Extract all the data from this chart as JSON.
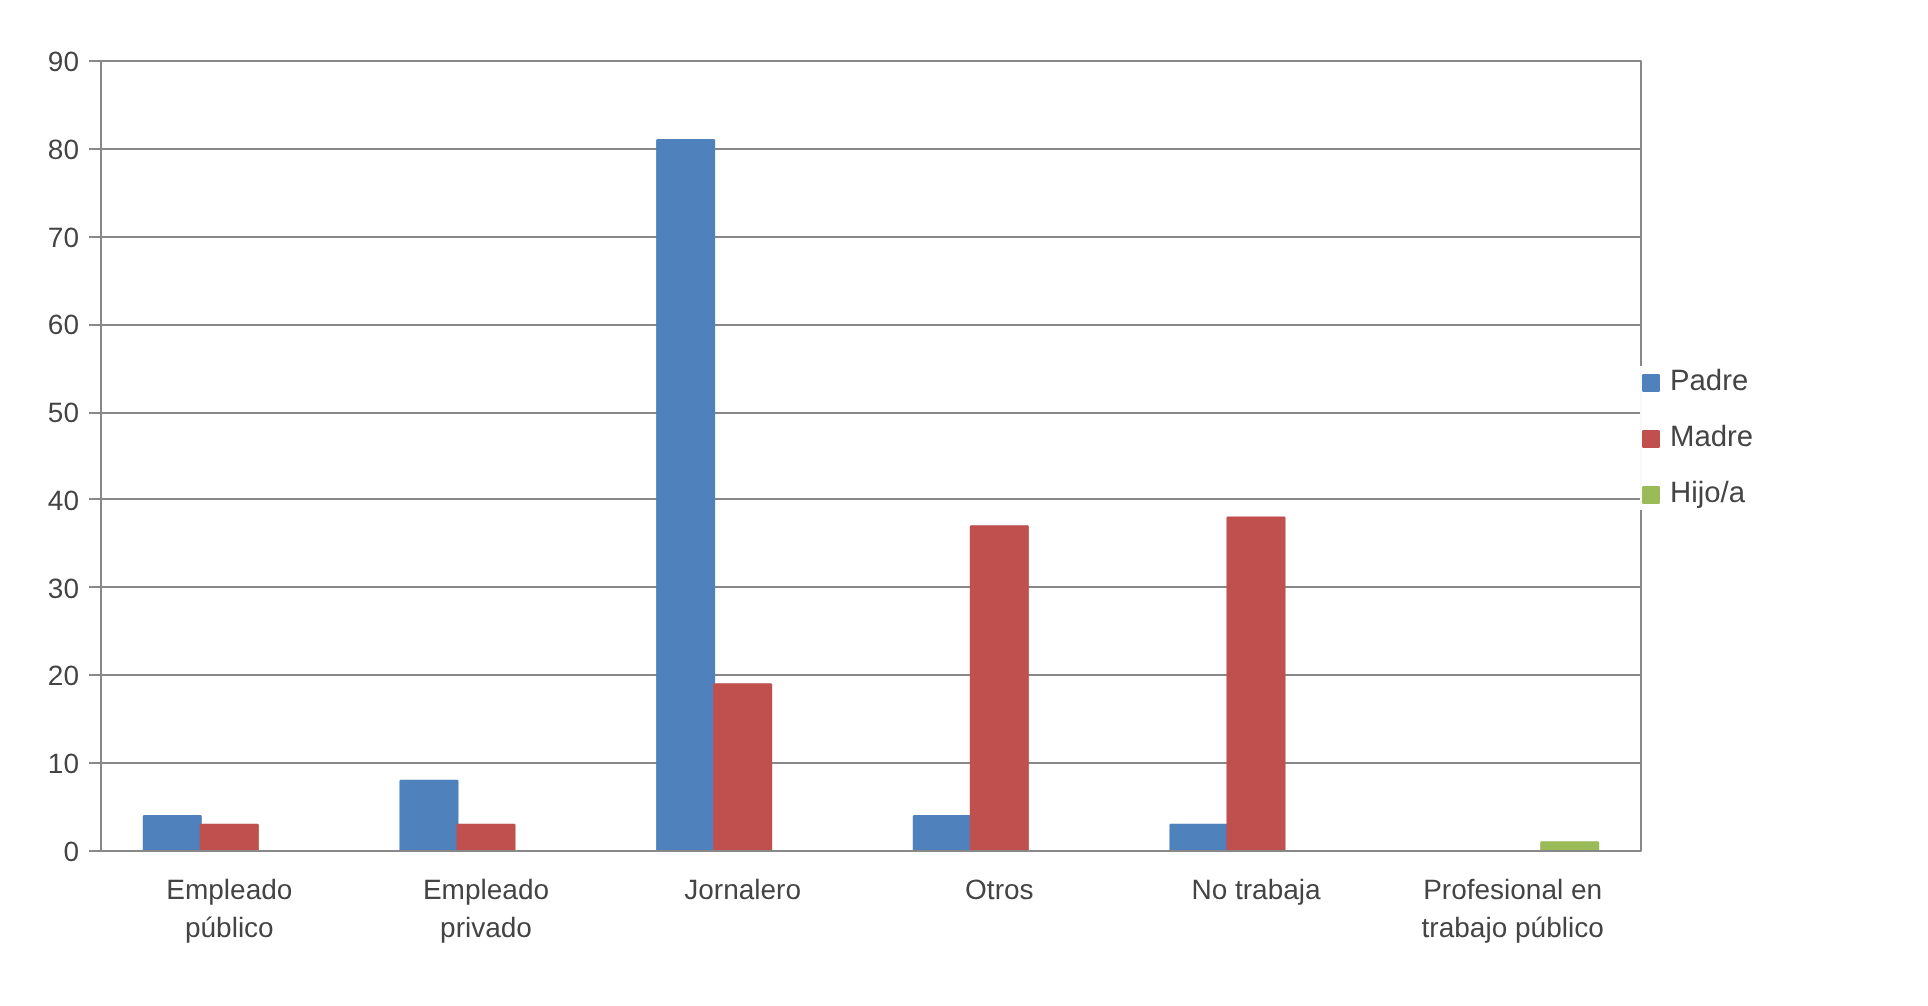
{
  "chart_data": {
    "type": "bar",
    "categories": [
      "Empleado público",
      "Empleado privado",
      "Jornalero",
      "Otros",
      "No trabaja",
      "Profesional en trabajo público"
    ],
    "series": [
      {
        "name": "Padre",
        "color": "#4f81bd",
        "values": [
          4,
          8,
          81,
          4,
          3,
          null
        ]
      },
      {
        "name": "Madre",
        "color": "#c0504d",
        "values": [
          3,
          3,
          19,
          37,
          38,
          null
        ]
      },
      {
        "name": "Hijo/a",
        "color": "#9bbb59",
        "values": [
          null,
          null,
          null,
          null,
          null,
          1
        ]
      }
    ],
    "ylim": [
      0,
      90
    ],
    "yticks": [
      0,
      10,
      20,
      30,
      40,
      50,
      60,
      70,
      80,
      90
    ],
    "grid": "y",
    "legend": "right"
  }
}
